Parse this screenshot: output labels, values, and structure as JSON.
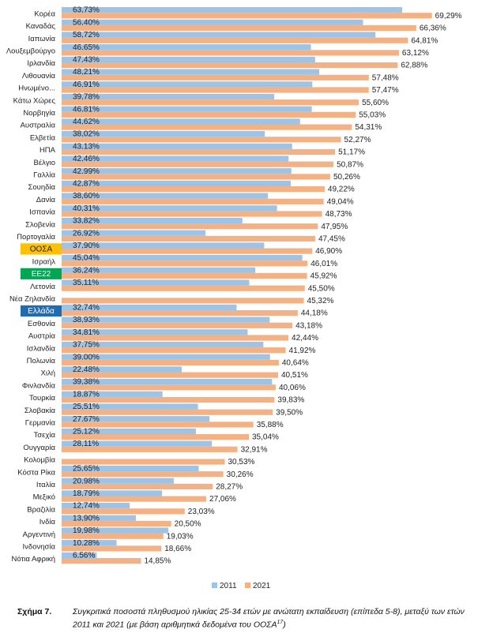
{
  "chart_data": {
    "type": "bar",
    "orientation": "horizontal",
    "categories": [
      "Κορέα",
      "Καναδάς",
      "Ιαπωνία",
      "Λουξεμβούργο",
      "Ιρλανδία",
      "Λιθουανία",
      "Ηνωμένο...",
      "Κάτω Χώρες",
      "Νορβηγία",
      "Αυστραλία",
      "Ελβετία",
      "ΗΠΑ",
      "Βέλγιο",
      "Γαλλία",
      "Σουηδία",
      "Δανία",
      "Ισπανία",
      "Σλοβενία",
      "Πορτογαλία",
      "ΟΟΣΑ",
      "Ισραήλ",
      "ΕΕ22",
      "Λετονία",
      "Νέα Ζηλανδία",
      "Ελλάδα",
      "Εσθονία",
      "Αυστρία",
      "Ισλανδία",
      "Πολωνία",
      "Χιλή",
      "Φινλανδία",
      "Τουρκία",
      "Σλοβακία",
      "Γερμανία",
      "Τσεχία",
      "Ουγγαρία",
      "Κολομβία",
      "Κόστα Ρίκα",
      "Ιταλία",
      "Μεξικό",
      "Βραζιλία",
      "Ινδία",
      "Αργεντινή",
      "Ινδονησία",
      "Νότια Αφρική"
    ],
    "series": [
      {
        "name": "2011",
        "color": "#9dc3e6",
        "values": [
          63.73,
          56.4,
          58.72,
          46.65,
          47.43,
          48.21,
          46.91,
          39.78,
          46.81,
          44.62,
          38.02,
          43.13,
          42.46,
          42.99,
          42.87,
          38.6,
          40.31,
          33.82,
          26.92,
          37.9,
          45.04,
          36.24,
          35.11,
          null,
          32.74,
          38.93,
          34.81,
          37.75,
          39.0,
          22.48,
          39.38,
          18.87,
          25.51,
          27.67,
          25.12,
          28.11,
          null,
          25.65,
          20.98,
          18.79,
          12.74,
          13.9,
          19.98,
          10.28,
          6.56
        ],
        "labels": [
          "63,73%",
          "56,40%",
          "58,72%",
          "46,65%",
          "47,43%",
          "48,21%",
          "46,91%",
          "39,78%",
          "46,81%",
          "44,62%",
          "38,02%",
          "43,13%",
          "42,46%",
          "42,99%",
          "42,87%",
          "38,60%",
          "40,31%",
          "33,82%",
          "26,92%",
          "37,90%",
          "45,04%",
          "36,24%",
          "35,11%",
          "",
          "32,74%",
          "38,93%",
          "34,81%",
          "37,75%",
          "39,00%",
          "22,48%",
          "39,38%",
          "18,87%",
          "25,51%",
          "27,67%",
          "25,12%",
          "28,11%",
          "",
          "25,65%",
          "20,98%",
          "18,79%",
          "12,74%",
          "13,90%",
          "19,98%",
          "10,28%",
          "6,56%"
        ]
      },
      {
        "name": "2021",
        "color": "#f4b183",
        "values": [
          69.29,
          66.36,
          64.81,
          63.12,
          62.88,
          57.48,
          57.47,
          55.6,
          55.03,
          54.31,
          52.27,
          51.17,
          50.87,
          50.26,
          49.22,
          49.04,
          48.73,
          47.95,
          47.45,
          46.9,
          46.01,
          45.92,
          45.5,
          45.32,
          44.18,
          43.18,
          42.44,
          41.92,
          40.64,
          40.51,
          40.06,
          39.83,
          39.5,
          35.88,
          35.04,
          32.91,
          30.53,
          30.26,
          28.27,
          27.06,
          23.03,
          20.5,
          19.03,
          18.66,
          14.85
        ],
        "labels": [
          "69,29%",
          "66,36%",
          "64,81%",
          "63,12%",
          "62,88%",
          "57,48%",
          "57,47%",
          "55,60%",
          "55,03%",
          "54,31%",
          "52,27%",
          "51,17%",
          "50,87%",
          "50,26%",
          "49,22%",
          "49,04%",
          "48,73%",
          "47,95%",
          "47,45%",
          "46,90%",
          "46,01%",
          "45,92%",
          "45,50%",
          "45,32%",
          "44,18%",
          "43,18%",
          "42,44%",
          "41,92%",
          "40,64%",
          "40,51%",
          "40,06%",
          "39,83%",
          "39,50%",
          "35,88%",
          "35,04%",
          "32,91%",
          "30,53%",
          "30,26%",
          "28,27%",
          "27,06%",
          "23,03%",
          "20,50%",
          "19,03%",
          "18,66%",
          "14,85%"
        ]
      }
    ],
    "highlights": [
      {
        "category": "ΟΟΣΑ",
        "bg": "#ffc000",
        "fg": "#222222"
      },
      {
        "category": "ΕΕ22",
        "bg": "#00a651",
        "fg": "#ffffff"
      },
      {
        "category": "Ελλάδα",
        "bg": "#1f6cb0",
        "fg": "#ffffff"
      }
    ],
    "xlim": [
      0,
      72
    ],
    "legend": "bottom",
    "legend_labels": [
      "2011",
      "2021"
    ]
  },
  "caption": {
    "number": "Σχήμα 7.",
    "text": "Συγκριτικά ποσοστά πληθυσμού ηλικίας 25-34 ετών με ανώτατη εκπαίδευση (επίπεδα 5-8), μεταξύ των ετών 2011 και 2021 (με βάση αριθμητικά δεδομένα του ΟΟΣΑ",
    "footnote_ref": "17",
    "text_end": ")"
  }
}
